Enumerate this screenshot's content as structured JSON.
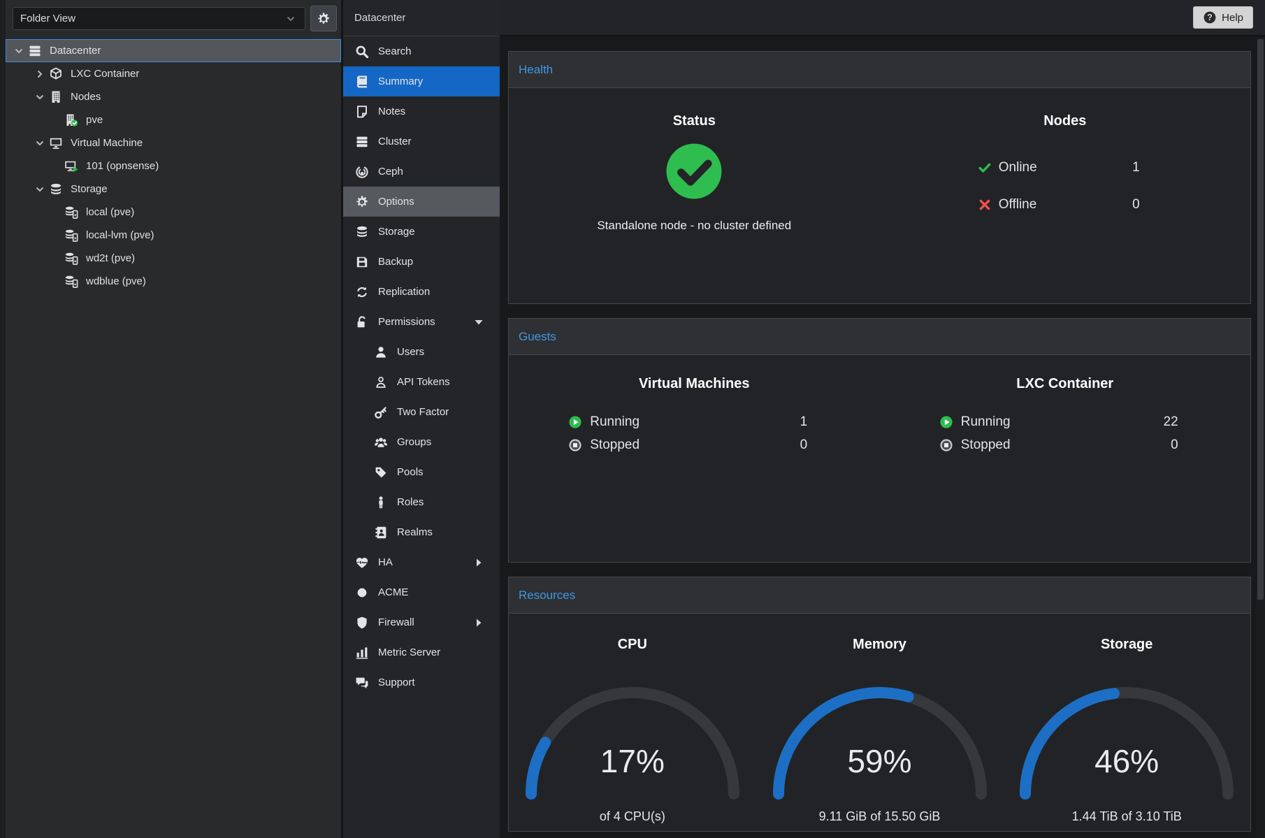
{
  "colors": {
    "selection_blue": "#1467c5",
    "panel_title_blue": "#3f97e3",
    "ok_green": "#2ebd4e",
    "error_red": "#f0504f",
    "gauge_blue": "#1d6fc5",
    "stopped_gray": "#c9cacc"
  },
  "sidebar": {
    "view_selector": {
      "value": "Folder View"
    },
    "gear_button_icon": "gear",
    "tree": [
      {
        "label": "Datacenter",
        "icon": "server-rack",
        "level": 0,
        "expand": "open",
        "selected": true
      },
      {
        "label": "LXC Container",
        "icon": "cube",
        "level": 1,
        "expand": "closed"
      },
      {
        "label": "Nodes",
        "icon": "building",
        "level": 1,
        "expand": "open"
      },
      {
        "label": "pve",
        "icon": "building-check",
        "level": 2,
        "expand": "none"
      },
      {
        "label": "Virtual Machine",
        "icon": "monitor",
        "level": 1,
        "expand": "open"
      },
      {
        "label": "101 (opnsense)",
        "icon": "monitor-play",
        "level": 2,
        "expand": "none"
      },
      {
        "label": "Storage",
        "icon": "database",
        "level": 1,
        "expand": "open"
      },
      {
        "label": "local (pve)",
        "icon": "database-drive",
        "level": 2,
        "expand": "none"
      },
      {
        "label": "local-lvm (pve)",
        "icon": "database-drive",
        "level": 2,
        "expand": "none"
      },
      {
        "label": "wd2t (pve)",
        "icon": "database-drive",
        "level": 2,
        "expand": "none"
      },
      {
        "label": "wdblue (pve)",
        "icon": "database-drive",
        "level": 2,
        "expand": "none"
      }
    ]
  },
  "nav": {
    "title": "Datacenter",
    "items": [
      {
        "label": "Search",
        "icon": "search"
      },
      {
        "label": "Summary",
        "icon": "book",
        "selected": true
      },
      {
        "label": "Notes",
        "icon": "note"
      },
      {
        "label": "Cluster",
        "icon": "server-rack"
      },
      {
        "label": "Ceph",
        "icon": "ceph"
      },
      {
        "label": "Options",
        "icon": "gear",
        "hover": true
      },
      {
        "label": "Storage",
        "icon": "database"
      },
      {
        "label": "Backup",
        "icon": "floppy"
      },
      {
        "label": "Replication",
        "icon": "sync"
      },
      {
        "label": "Permissions",
        "icon": "unlock",
        "caret": "down"
      },
      {
        "label": "Users",
        "icon": "user",
        "indent": true
      },
      {
        "label": "API Tokens",
        "icon": "user-outline",
        "indent": true
      },
      {
        "label": "Two Factor",
        "icon": "key",
        "indent": true
      },
      {
        "label": "Groups",
        "icon": "users",
        "indent": true
      },
      {
        "label": "Pools",
        "icon": "tag",
        "indent": true
      },
      {
        "label": "Roles",
        "icon": "person",
        "indent": true
      },
      {
        "label": "Realms",
        "icon": "address-book",
        "indent": true
      },
      {
        "label": "HA",
        "icon": "heartbeat",
        "caret": "right"
      },
      {
        "label": "ACME",
        "icon": "certificate"
      },
      {
        "label": "Firewall",
        "icon": "shield",
        "caret": "right"
      },
      {
        "label": "Metric Server",
        "icon": "bar-chart"
      },
      {
        "label": "Support",
        "icon": "comments"
      }
    ]
  },
  "header": {
    "help_label": "Help",
    "help_icon": "question-circle"
  },
  "panels": {
    "health": {
      "title": "Health",
      "status": {
        "heading": "Status",
        "icon": "check-circle",
        "message": "Standalone node - no cluster defined"
      },
      "nodes": {
        "heading": "Nodes",
        "rows": [
          {
            "icon": "check",
            "label": "Online",
            "value": "1"
          },
          {
            "icon": "cross",
            "label": "Offline",
            "value": "0"
          }
        ]
      }
    },
    "guests": {
      "title": "Guests",
      "columns": [
        {
          "heading": "Virtual Machines",
          "rows": [
            {
              "icon": "play-circle",
              "label": "Running",
              "value": "1"
            },
            {
              "icon": "stop-circle",
              "label": "Stopped",
              "value": "0"
            }
          ]
        },
        {
          "heading": "LXC Container",
          "rows": [
            {
              "icon": "play-circle",
              "label": "Running",
              "value": "22"
            },
            {
              "icon": "stop-circle",
              "label": "Stopped",
              "value": "0"
            }
          ]
        }
      ]
    },
    "resources": {
      "title": "Resources",
      "gauges": [
        {
          "heading": "CPU",
          "percent": 17,
          "detail": "of 4 CPU(s)"
        },
        {
          "heading": "Memory",
          "percent": 59,
          "detail": "9.11 GiB of 15.50 GiB"
        },
        {
          "heading": "Storage",
          "percent": 46,
          "detail": "1.44 TiB of 3.10 TiB"
        }
      ]
    }
  }
}
